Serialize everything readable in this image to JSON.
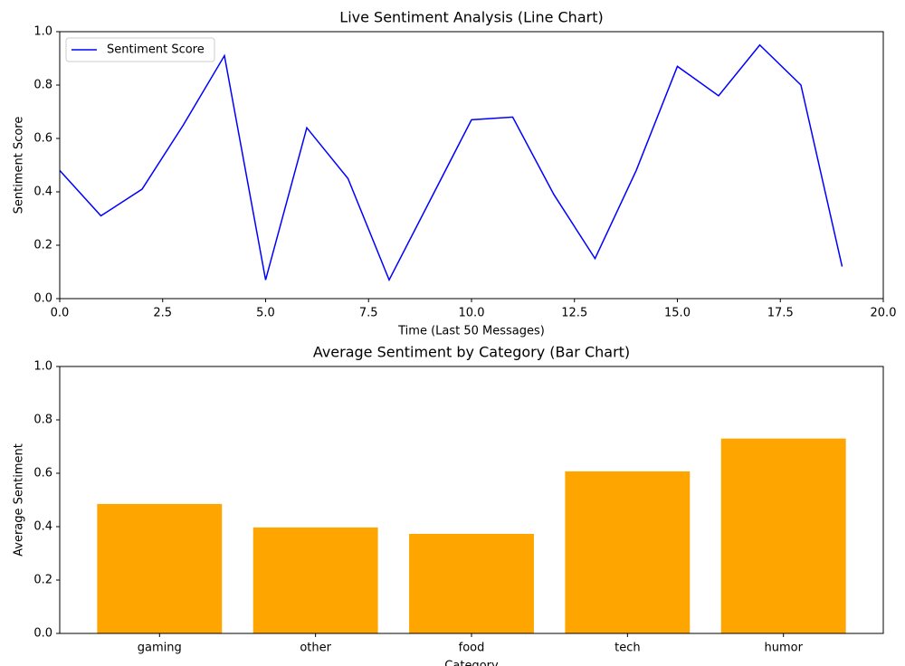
{
  "chart_data": [
    {
      "type": "line",
      "title": "Live Sentiment Analysis (Line Chart)",
      "xlabel": "Time (Last 50 Messages)",
      "ylabel": "Sentiment Score",
      "x": [
        0,
        1,
        2,
        3,
        4,
        5,
        6,
        7,
        8,
        9,
        10,
        11,
        12,
        13,
        14,
        15,
        16,
        17,
        18,
        19
      ],
      "series": [
        {
          "name": "Sentiment Score",
          "color": "#0000ff",
          "values": [
            0.48,
            0.31,
            0.41,
            0.65,
            0.91,
            0.07,
            0.64,
            0.45,
            0.07,
            0.37,
            0.67,
            0.68,
            0.39,
            0.15,
            0.48,
            0.87,
            0.76,
            0.95,
            0.8,
            0.12
          ]
        }
      ],
      "xlim": [
        0,
        20
      ],
      "xticks": [
        {
          "value": 0,
          "label": "0.0"
        },
        2.5,
        {
          "value": 5,
          "label": "5.0"
        },
        7.5,
        {
          "value": 10,
          "label": "10.0"
        },
        12.5,
        {
          "value": 15,
          "label": "15.0"
        },
        17.5,
        {
          "value": 20,
          "label": "20.0"
        }
      ],
      "ylim": [
        0,
        1
      ],
      "yticks": [
        {
          "value": 0,
          "label": "0.0"
        },
        0.2,
        0.4,
        0.6,
        0.8,
        {
          "value": 1,
          "label": "1.0"
        }
      ],
      "legend": "upper left"
    },
    {
      "type": "bar",
      "title": "Average Sentiment by Category (Bar Chart)",
      "xlabel": "Category",
      "ylabel": "Average Sentiment",
      "categories": [
        "gaming",
        "other",
        "food",
        "tech",
        "humor"
      ],
      "values": [
        0.485,
        0.397,
        0.373,
        0.607,
        0.73
      ],
      "color": "#ffa500",
      "ylim": [
        0,
        1
      ],
      "yticks": [
        {
          "value": 0,
          "label": "0.0"
        },
        0.2,
        0.4,
        0.6,
        0.8,
        {
          "value": 1,
          "label": "1.0"
        }
      ]
    }
  ]
}
